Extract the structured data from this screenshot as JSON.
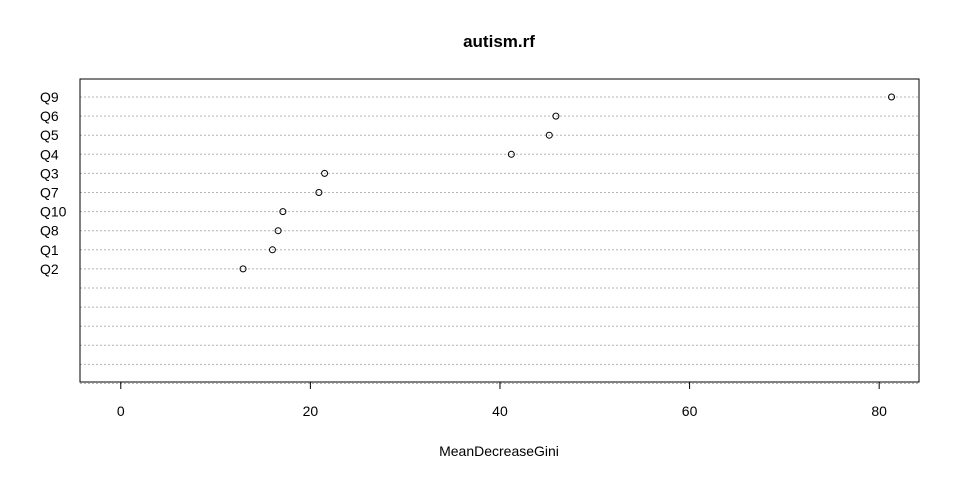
{
  "chart_data": {
    "type": "scatter",
    "title": "autism.rf",
    "xlabel": "MeanDecreaseGini",
    "ylabel": "",
    "xlim": [
      -4.3,
      84.2
    ],
    "xticks": [
      0,
      20,
      40,
      60,
      80
    ],
    "grid": true,
    "categories": [
      "Q9",
      "Q6",
      "Q5",
      "Q4",
      "Q3",
      "Q7",
      "Q10",
      "Q8",
      "Q1",
      "Q2"
    ],
    "values": [
      81.3,
      45.9,
      45.2,
      41.2,
      21.5,
      20.9,
      17.1,
      16.6,
      16.0,
      12.9
    ],
    "extra_empty_rows": 6
  },
  "colors": {
    "point_stroke": "#000000",
    "grid": "#b3b3b3",
    "axis": "#000000"
  }
}
